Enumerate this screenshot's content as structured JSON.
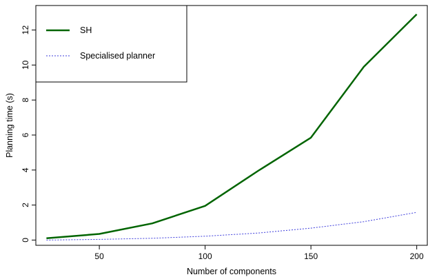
{
  "chart_data": {
    "type": "line",
    "title": "",
    "xlabel": "Number of components",
    "ylabel": "Planning time (s)",
    "x": [
      25,
      50,
      75,
      100,
      125,
      150,
      175,
      200
    ],
    "xlim": [
      20,
      205
    ],
    "ylim": [
      -0.3,
      13.4
    ],
    "xticks": [
      50,
      100,
      150,
      200
    ],
    "yticks": [
      0,
      2,
      4,
      6,
      8,
      10,
      12
    ],
    "grid": false,
    "legend_position": "top-left",
    "series": [
      {
        "name": "SH",
        "values": [
          0.1,
          0.35,
          0.95,
          1.95,
          3.95,
          5.85,
          9.9,
          12.9
        ],
        "color": "#006400",
        "line_style": "solid"
      },
      {
        "name": "Specialised planner",
        "values": [
          0.0,
          0.04,
          0.1,
          0.22,
          0.4,
          0.68,
          1.05,
          1.58
        ],
        "color": "#3b3bdb",
        "line_style": "dotted"
      }
    ]
  }
}
